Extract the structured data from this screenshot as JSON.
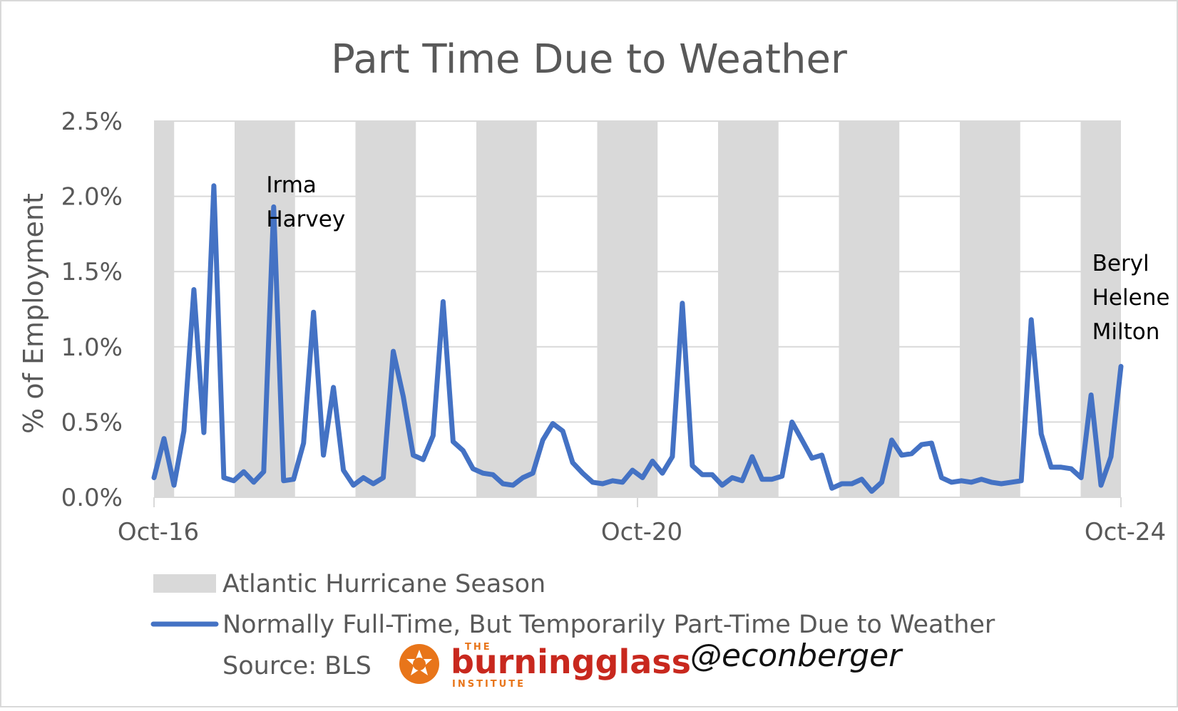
{
  "chart_data": {
    "type": "line",
    "title": "Part Time Due to Weather",
    "ylabel": "% of Employment",
    "xlabel": "",
    "ylim": [
      0,
      0.025
    ],
    "yticks": [
      "0.0%",
      "0.5%",
      "1.0%",
      "1.5%",
      "2.0%",
      "2.5%"
    ],
    "xticks": [
      "Oct-16",
      "Oct-20",
      "Oct-24"
    ],
    "grid": true,
    "x_start": "2016-10",
    "x_end": "2024-10",
    "series": [
      {
        "name": "Normally Full-Time, But Temporarily Part-Time Due to Weather",
        "color": "#4472C4",
        "values": [
          0.0013,
          0.0039,
          0.0008,
          0.0044,
          0.0138,
          0.0043,
          0.0207,
          0.0013,
          0.0011,
          0.0017,
          0.001,
          0.0017,
          0.0193,
          0.0011,
          0.0012,
          0.0036,
          0.0123,
          0.0028,
          0.0073,
          0.0018,
          0.0008,
          0.0013,
          0.0009,
          0.0013,
          0.0097,
          0.0067,
          0.0028,
          0.0025,
          0.0041,
          0.013,
          0.0037,
          0.0031,
          0.0019,
          0.0016,
          0.0015,
          0.0009,
          0.0008,
          0.0013,
          0.0016,
          0.0038,
          0.0049,
          0.0044,
          0.0023,
          0.0016,
          0.001,
          0.0009,
          0.0011,
          0.001,
          0.0018,
          0.0013,
          0.0024,
          0.0016,
          0.0027,
          0.0129,
          0.0021,
          0.0015,
          0.0015,
          0.0008,
          0.0013,
          0.0011,
          0.0027,
          0.0012,
          0.0012,
          0.0014,
          0.005,
          0.0038,
          0.0026,
          0.0028,
          0.0006,
          0.0009,
          0.0009,
          0.0012,
          0.0004,
          0.001,
          0.0038,
          0.0028,
          0.0029,
          0.0035,
          0.0036,
          0.0013,
          0.001,
          0.0011,
          0.001,
          0.0012,
          0.001,
          0.0009,
          0.001,
          0.0011,
          0.0118,
          0.0042,
          0.002,
          0.002,
          0.0019,
          0.0013,
          0.0068,
          0.0008,
          0.0027,
          0.0087
        ]
      }
    ],
    "shaded_periods_label": "Atlantic Hurricane Season",
    "shaded_periods": [
      [
        "2016-10",
        "2016-11"
      ],
      [
        "2017-06",
        "2017-11"
      ],
      [
        "2018-06",
        "2018-11"
      ],
      [
        "2019-06",
        "2019-11"
      ],
      [
        "2020-06",
        "2020-11"
      ],
      [
        "2021-06",
        "2021-11"
      ],
      [
        "2022-06",
        "2022-11"
      ],
      [
        "2023-06",
        "2023-11"
      ],
      [
        "2024-06",
        "2024-10"
      ]
    ],
    "annotations": [
      {
        "lines": [
          "Irma",
          "Harvey"
        ],
        "x": "2017-09"
      },
      {
        "lines": [
          "Beryl",
          "Helene",
          "Milton"
        ],
        "x": "2024-07"
      }
    ],
    "legend_position": "bottom"
  },
  "footer": {
    "source": "Source: BLS",
    "logo_small_top": "THE",
    "logo_word": "burningglass",
    "logo_small_bottom": "INSTITUTE",
    "handle": "@econberger"
  }
}
